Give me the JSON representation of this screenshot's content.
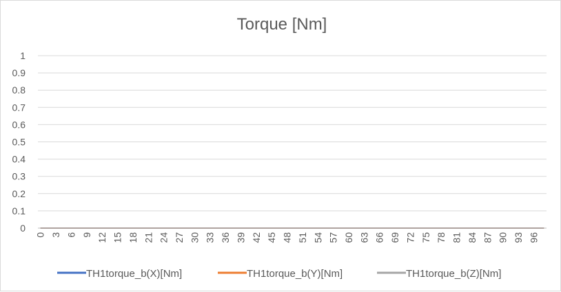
{
  "chart_data": {
    "type": "line",
    "title": "Torque [Nm]",
    "xlabel": "",
    "ylabel": "",
    "x": [
      0,
      1,
      2,
      3,
      4,
      5,
      6,
      7,
      8,
      9,
      10,
      11,
      12,
      13,
      14,
      15,
      16,
      17,
      18,
      19,
      20,
      21,
      22,
      23,
      24,
      25,
      26,
      27,
      28,
      29,
      30,
      31,
      32,
      33,
      34,
      35,
      36,
      37,
      38,
      39,
      40,
      41,
      42,
      43,
      44,
      45,
      46,
      47,
      48,
      49,
      50,
      51,
      52,
      53,
      54,
      55,
      56,
      57,
      58,
      59,
      60,
      61,
      62,
      63,
      64,
      65,
      66,
      67,
      68,
      69,
      70,
      71,
      72,
      73,
      74,
      75,
      76,
      77,
      78,
      79,
      80,
      81,
      82,
      83,
      84,
      85,
      86,
      87,
      88,
      89,
      90,
      91,
      92,
      93,
      94,
      95,
      96,
      97,
      98
    ],
    "x_tick_labels": [
      "0",
      "3",
      "6",
      "9",
      "12",
      "15",
      "18",
      "21",
      "24",
      "27",
      "30",
      "33",
      "36",
      "39",
      "42",
      "45",
      "48",
      "51",
      "54",
      "57",
      "60",
      "63",
      "66",
      "69",
      "72",
      "75",
      "78",
      "81",
      "84",
      "87",
      "90",
      "93",
      "96"
    ],
    "y_tick_labels": [
      "0",
      "0.1",
      "0.2",
      "0.3",
      "0.4",
      "0.5",
      "0.6",
      "0.7",
      "0.8",
      "0.9",
      "1"
    ],
    "ylim": [
      0,
      1
    ],
    "grid": true,
    "legend": "bottom",
    "series": [
      {
        "name": "TH1torque_b(X)[Nm]",
        "color": "#4472c4",
        "values": [
          0,
          0,
          0,
          0,
          0,
          0,
          0,
          0,
          0,
          0,
          0,
          0,
          0,
          0,
          0,
          0,
          0,
          0,
          0,
          0,
          0,
          0,
          0,
          0,
          0,
          0,
          0,
          0,
          0,
          0,
          0,
          0,
          0,
          0,
          0,
          0,
          0,
          0,
          0,
          0,
          0,
          0,
          0,
          0,
          0,
          0,
          0,
          0,
          0,
          0,
          0,
          0,
          0,
          0,
          0,
          0,
          0,
          0,
          0,
          0,
          0,
          0,
          0,
          0,
          0,
          0,
          0,
          0,
          0,
          0,
          0,
          0,
          0,
          0,
          0,
          0,
          0,
          0,
          0,
          0,
          0,
          0,
          0,
          0,
          0,
          0,
          0,
          0,
          0,
          0,
          0,
          0,
          0,
          0,
          0,
          0,
          0,
          0,
          0
        ]
      },
      {
        "name": "TH1torque_b(Y)[Nm]",
        "color": "#ed7d31",
        "values": [
          0,
          0,
          0,
          0,
          0,
          0,
          0,
          0,
          0,
          0,
          0,
          0,
          0,
          0,
          0,
          0,
          0,
          0,
          0,
          0,
          0,
          0,
          0,
          0,
          0,
          0,
          0,
          0,
          0,
          0,
          0,
          0,
          0,
          0,
          0,
          0,
          0,
          0,
          0,
          0,
          0,
          0,
          0,
          0,
          0,
          0,
          0,
          0,
          0,
          0,
          0,
          0,
          0,
          0,
          0,
          0,
          0,
          0,
          0,
          0,
          0,
          0,
          0,
          0,
          0,
          0,
          0,
          0,
          0,
          0,
          0,
          0,
          0,
          0,
          0,
          0,
          0,
          0,
          0,
          0,
          0,
          0,
          0,
          0,
          0,
          0,
          0,
          0,
          0,
          0,
          0,
          0,
          0,
          0,
          0,
          0,
          0,
          0,
          0
        ]
      },
      {
        "name": "TH1torque_b(Z)[Nm]",
        "color": "#a5a5a5",
        "values": [
          0,
          0,
          0,
          0,
          0,
          0,
          0,
          0,
          0,
          0,
          0,
          0,
          0,
          0,
          0,
          0,
          0,
          0,
          0,
          0,
          0,
          0,
          0,
          0,
          0,
          0,
          0,
          0,
          0,
          0,
          0,
          0,
          0,
          0,
          0,
          0,
          0,
          0,
          0,
          0,
          0,
          0,
          0,
          0,
          0,
          0,
          0,
          0,
          0,
          0,
          0,
          0,
          0,
          0,
          0,
          0,
          0,
          0,
          0,
          0,
          0,
          0,
          0,
          0,
          0,
          0,
          0,
          0,
          0,
          0,
          0,
          0,
          0,
          0,
          0,
          0,
          0,
          0,
          0,
          0,
          0,
          0,
          0,
          0,
          0,
          0,
          0,
          0,
          0,
          0,
          0,
          0,
          0,
          0,
          0,
          0,
          0,
          0,
          0
        ]
      }
    ]
  }
}
